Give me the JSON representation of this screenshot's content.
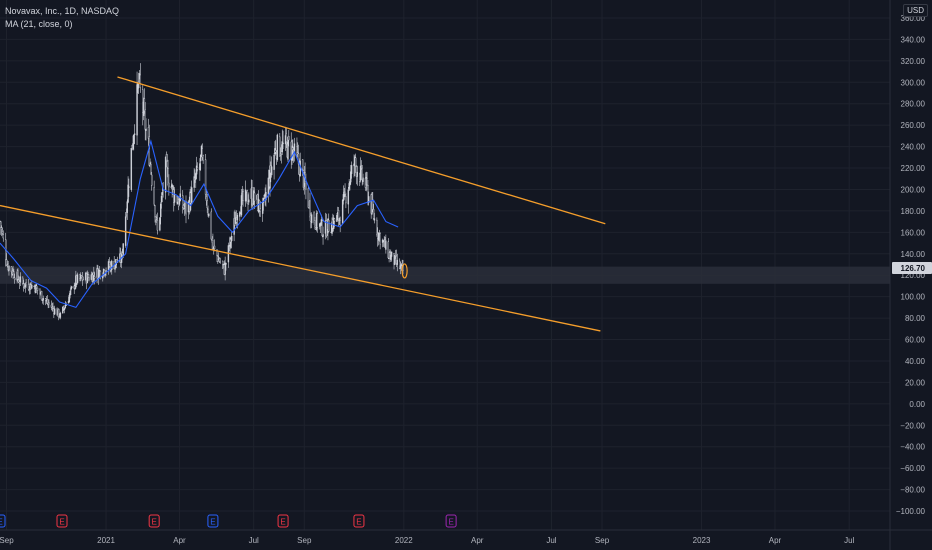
{
  "legend": {
    "symbol_line": "Novavax, Inc., 1D, NASDAQ",
    "indicator_line": "MA (21, close, 0)"
  },
  "currency": "USD",
  "colors": {
    "background": "#131722",
    "grid": "#1e222d",
    "trendline": "#f59e2b",
    "ma": "#2962ff",
    "candle": "#d1d4dc",
    "price_label_bg": "#d1d4dc",
    "earnings_past": "#f23645",
    "earnings_future": "#9c27b0",
    "earnings_blue": "#2962ff"
  },
  "chart_data": {
    "type": "candlestick",
    "symbol": "Novavax, Inc.",
    "interval": "1D",
    "exchange": "NASDAQ",
    "indicator": "MA (21, close, 0)",
    "last_price": "126.70",
    "y_ticks": [
      "360.00",
      "340.00",
      "320.00",
      "300.00",
      "280.00",
      "260.00",
      "240.00",
      "220.00",
      "200.00",
      "180.00",
      "160.00",
      "140.00",
      "120.00",
      "100.00",
      "80.00",
      "60.00",
      "40.00",
      "20.00",
      "0.00",
      "−20.00",
      "−40.00",
      "−60.00",
      "−80.00",
      "−100.00"
    ],
    "y_range": [
      -105,
      365
    ],
    "x_ticks": [
      "Sep",
      "2021",
      "Apr",
      "Jul",
      "Sep",
      "2022",
      "Apr",
      "Jul",
      "Sep",
      "2023",
      "Apr",
      "Jul"
    ],
    "x_range": [
      "2020-08-24",
      "2023-08-20"
    ],
    "x_tick_dates": [
      "2020-09-01",
      "2021-01-01",
      "2021-04-01",
      "2021-07-01",
      "2021-09-01",
      "2022-01-01",
      "2022-04-01",
      "2022-07-01",
      "2022-09-01",
      "2023-01-01",
      "2023-04-01",
      "2023-07-01"
    ],
    "price_path": [
      [
        "2020-08-24",
        170
      ],
      [
        "2020-09-02",
        130
      ],
      [
        "2020-09-20",
        112
      ],
      [
        "2020-10-05",
        110
      ],
      [
        "2020-10-20",
        95
      ],
      [
        "2020-11-06",
        82
      ],
      [
        "2020-11-25",
        115
      ],
      [
        "2020-12-10",
        118
      ],
      [
        "2020-12-28",
        125
      ],
      [
        "2021-01-20",
        135
      ],
      [
        "2021-02-01",
        235
      ],
      [
        "2021-02-10",
        300
      ],
      [
        "2021-02-22",
        240
      ],
      [
        "2021-03-05",
        160
      ],
      [
        "2021-03-15",
        220
      ],
      [
        "2021-03-25",
        195
      ],
      [
        "2021-04-10",
        180
      ],
      [
        "2021-04-28",
        230
      ],
      [
        "2021-05-12",
        145
      ],
      [
        "2021-05-26",
        125
      ],
      [
        "2021-06-12",
        185
      ],
      [
        "2021-06-28",
        195
      ],
      [
        "2021-07-12",
        180
      ],
      [
        "2021-07-28",
        240
      ],
      [
        "2021-08-15",
        240
      ],
      [
        "2021-08-28",
        220
      ],
      [
        "2021-09-10",
        175
      ],
      [
        "2021-09-25",
        162
      ],
      [
        "2021-10-15",
        175
      ],
      [
        "2021-11-01",
        225
      ],
      [
        "2021-11-15",
        205
      ],
      [
        "2021-11-30",
        160
      ],
      [
        "2021-12-15",
        138
      ],
      [
        "2022-01-02",
        122
      ]
    ],
    "ma_path": [
      [
        "2020-08-24",
        150
      ],
      [
        "2020-09-10",
        135
      ],
      [
        "2020-10-01",
        115
      ],
      [
        "2020-10-20",
        108
      ],
      [
        "2020-11-05",
        95
      ],
      [
        "2020-11-25",
        90
      ],
      [
        "2020-12-15",
        112
      ],
      [
        "2021-01-05",
        125
      ],
      [
        "2021-01-25",
        140
      ],
      [
        "2021-02-12",
        210
      ],
      [
        "2021-02-25",
        245
      ],
      [
        "2021-03-12",
        200
      ],
      [
        "2021-03-28",
        195
      ],
      [
        "2021-04-15",
        185
      ],
      [
        "2021-05-01",
        205
      ],
      [
        "2021-05-18",
        175
      ],
      [
        "2021-06-05",
        160
      ],
      [
        "2021-06-25",
        180
      ],
      [
        "2021-07-15",
        190
      ],
      [
        "2021-08-01",
        210
      ],
      [
        "2021-08-20",
        235
      ],
      [
        "2021-09-05",
        205
      ],
      [
        "2021-09-25",
        170
      ],
      [
        "2021-10-15",
        165
      ],
      [
        "2021-11-05",
        185
      ],
      [
        "2021-11-25",
        190
      ],
      [
        "2021-12-10",
        170
      ],
      [
        "2021-12-25",
        165
      ]
    ],
    "trendlines": [
      {
        "from": [
          "2021-01-15",
          305
        ],
        "to": [
          "2022-09-05",
          168
        ]
      },
      {
        "from": [
          "2020-08-24",
          185
        ],
        "to": [
          "2022-08-30",
          68
        ]
      }
    ],
    "highlight_band": [
      112,
      128
    ],
    "events": [
      {
        "date": "2020-08-24",
        "label": "E",
        "kind": "earnings_blue"
      },
      {
        "date": "2020-11-08",
        "label": "E",
        "kind": "earnings_past"
      },
      {
        "date": "2021-03-01",
        "label": "E",
        "kind": "earnings_past"
      },
      {
        "date": "2021-05-12",
        "label": "E",
        "kind": "earnings_blue"
      },
      {
        "date": "2021-08-06",
        "label": "E",
        "kind": "earnings_past"
      },
      {
        "date": "2021-11-07",
        "label": "E",
        "kind": "earnings_past"
      },
      {
        "date": "2022-02-28",
        "label": "E",
        "kind": "earnings_future"
      }
    ]
  }
}
